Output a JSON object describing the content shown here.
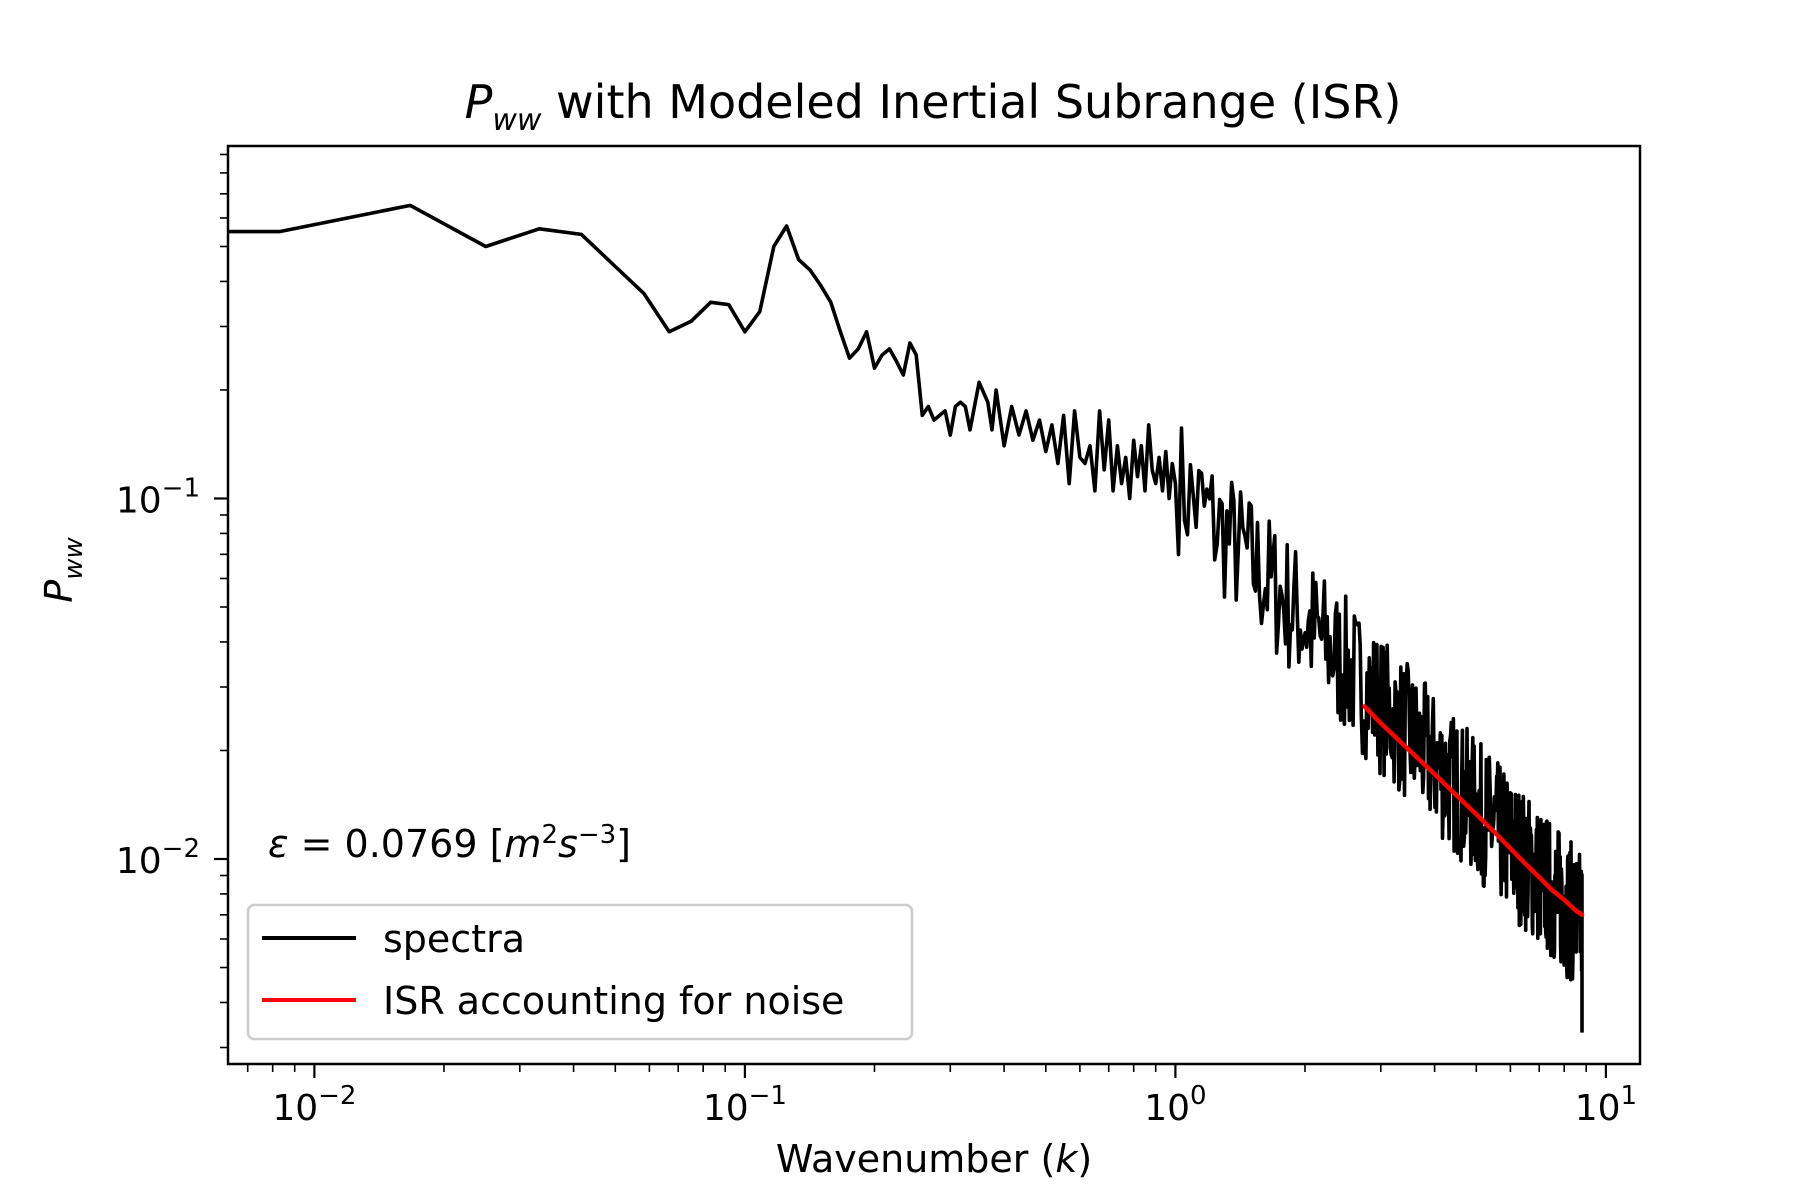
{
  "chart_data": {
    "type": "line",
    "title_parts": {
      "sym": "P",
      "sub": "ww",
      "rest": " with Modeled Inertial Subrange (ISR)"
    },
    "ylabel_parts": {
      "sym": "P",
      "sub": "ww"
    },
    "xlabel_parts": {
      "pre": "Wavenumber (",
      "sym": "k",
      "post": ")"
    },
    "x_scale": "log",
    "y_scale": "log",
    "xlim": [
      0.0063,
      12
    ],
    "ylim": [
      0.0027,
      0.95
    ],
    "x_ticks": [
      {
        "value": 0.01,
        "base": "10",
        "exp": "−2"
      },
      {
        "value": 0.1,
        "base": "10",
        "exp": "−1"
      },
      {
        "value": 1,
        "base": "10",
        "exp": "0"
      },
      {
        "value": 10,
        "base": "10",
        "exp": "1"
      }
    ],
    "y_ticks": [
      {
        "value": 0.01,
        "base": "10",
        "exp": "−2"
      },
      {
        "value": 0.1,
        "base": "10",
        "exp": "−1"
      }
    ],
    "annotation": {
      "sym": "ε",
      "eq": " = 0.0769 [",
      "m": "m",
      "m_exp": "2",
      "s": "s",
      "s_exp": "−3",
      "close": "]"
    },
    "legend": {
      "position": "lower-left",
      "items": [
        "spectra",
        "ISR accounting for noise"
      ]
    },
    "colors": {
      "spectra": "#000000",
      "isr": "#ff0000"
    },
    "series": [
      {
        "name": "spectra",
        "color": "#000000",
        "x": [
          0.0063,
          0.0083,
          0.0167,
          0.025,
          0.0333,
          0.0417,
          0.05,
          0.0583,
          0.0667,
          0.075,
          0.0833,
          0.0917,
          0.1,
          0.1083,
          0.1167,
          0.125,
          0.1333,
          0.1417,
          0.15,
          0.1583,
          0.1667,
          0.175,
          0.1833,
          0.1917,
          0.2,
          0.2083,
          0.2167,
          0.225,
          0.2333,
          0.2417,
          0.25,
          0.2583,
          0.2667,
          0.275,
          0.2833,
          0.2917,
          0.3,
          0.3083,
          0.3167,
          0.325,
          0.3333,
          0.35,
          0.3667,
          0.375,
          0.3833,
          0.4,
          0.4167,
          0.4333,
          0.45,
          0.4667,
          0.4833,
          0.5,
          0.5167,
          0.5333,
          0.55,
          0.5667,
          0.5833,
          0.6,
          0.6167,
          0.6333,
          0.65,
          0.6667,
          0.6833,
          0.7,
          0.7167,
          0.7333,
          0.75,
          0.7667,
          0.7833,
          0.8,
          0.8167,
          0.8333,
          0.85,
          0.8667,
          0.8833,
          0.9,
          0.9167,
          0.9333,
          0.95,
          0.9667,
          0.9833,
          1.0
        ],
        "y": [
          0.55,
          0.55,
          0.65,
          0.5,
          0.56,
          0.54,
          0.44,
          0.37,
          0.29,
          0.31,
          0.35,
          0.345,
          0.29,
          0.33,
          0.5,
          0.57,
          0.46,
          0.43,
          0.39,
          0.35,
          0.29,
          0.245,
          0.26,
          0.29,
          0.23,
          0.25,
          0.26,
          0.24,
          0.22,
          0.27,
          0.25,
          0.17,
          0.18,
          0.165,
          0.17,
          0.175,
          0.15,
          0.18,
          0.185,
          0.18,
          0.155,
          0.21,
          0.185,
          0.155,
          0.2,
          0.14,
          0.18,
          0.15,
          0.175,
          0.145,
          0.165,
          0.135,
          0.16,
          0.125,
          0.17,
          0.11,
          0.175,
          0.13,
          0.125,
          0.14,
          0.105,
          0.175,
          0.12,
          0.165,
          0.105,
          0.14,
          0.11,
          0.13,
          0.1,
          0.145,
          0.115,
          0.14,
          0.105,
          0.16,
          0.12,
          0.11,
          0.13,
          0.105,
          0.135,
          0.1,
          0.125,
          0.11
        ]
      },
      {
        "name": "ISR accounting for noise",
        "color": "#ff0000",
        "x": [
          2.75,
          3.0,
          3.5,
          4.0,
          4.5,
          5.0,
          5.5,
          6.0,
          6.5,
          7.0,
          7.5,
          8.0,
          8.5,
          8.8
        ],
        "y": [
          0.0265,
          0.0238,
          0.02,
          0.0172,
          0.015,
          0.0133,
          0.0119,
          0.0107,
          0.0097,
          0.0089,
          0.0082,
          0.0077,
          0.0072,
          0.007
        ]
      }
    ]
  }
}
